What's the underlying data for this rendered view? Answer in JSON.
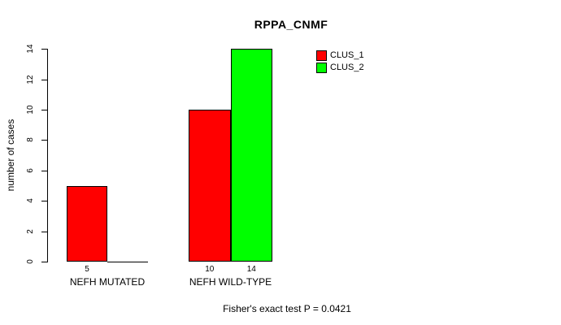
{
  "title": "RPPA_CNMF",
  "y_axis": {
    "label": "number of cases",
    "ticks": [
      0,
      2,
      4,
      6,
      8,
      10,
      12,
      14
    ]
  },
  "legend": {
    "position": "top-right",
    "items": [
      {
        "label": "CLUS_1",
        "color": "#ff0000"
      },
      {
        "label": "CLUS_2",
        "color": "#00ff00"
      }
    ]
  },
  "annotation": "Fisher's exact test P = 0.0421",
  "chart_data": {
    "type": "bar",
    "title": "RPPA_CNMF",
    "xlabel": "",
    "ylabel": "number of cases",
    "ylim": [
      0,
      14
    ],
    "yticks": [
      0,
      2,
      4,
      6,
      8,
      10,
      12,
      14
    ],
    "grid": false,
    "legend_position": "top-right",
    "categories": [
      "NEFH MUTATED",
      "NEFH WILD-TYPE"
    ],
    "series": [
      {
        "name": "CLUS_1",
        "color": "#ff0000",
        "values": [
          5,
          10
        ]
      },
      {
        "name": "CLUS_2",
        "color": "#00ff00",
        "values": [
          0,
          14
        ]
      }
    ],
    "bar_value_labels": [
      [
        "5",
        ""
      ],
      [
        "10",
        "14"
      ]
    ],
    "annotation": "Fisher's exact test P = 0.0421"
  }
}
